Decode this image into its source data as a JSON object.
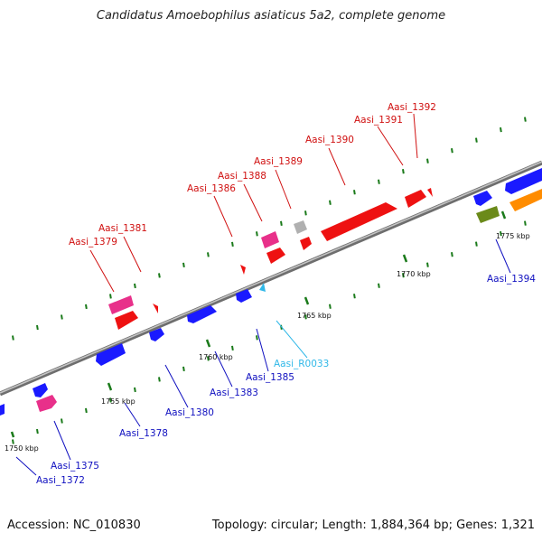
{
  "title": "Candidatus Amoebophilus asiaticus 5a2, complete genome",
  "footer": {
    "accession": "Accession: NC_010830",
    "summary": "Topology: circular; Length: 1,884,364 bp; Genes: 1,321"
  },
  "colors": {
    "backbone": "#8a8a8a",
    "tick": "#1a7a1a",
    "forward_label": "#d01010",
    "reverse_label": "#1010c0",
    "rna_label": "#30b8e8"
  },
  "ticks": [
    {
      "label": "1750 kbp"
    },
    {
      "label": "1755 kbp"
    },
    {
      "label": "1760 kbp"
    },
    {
      "label": "1765 kbp"
    },
    {
      "label": "1770 kbp"
    },
    {
      "label": "1775 kbp"
    }
  ],
  "genes": [
    {
      "id": "Aasi_1372",
      "strand": "reverse",
      "color": "#1a1aff"
    },
    {
      "id": "Aasi_1375",
      "strand": "reverse",
      "color": "#1a1aff"
    },
    {
      "id": "Aasi_1378",
      "strand": "reverse",
      "color": "#1a1aff"
    },
    {
      "id": "Aasi_1380",
      "strand": "reverse",
      "color": "#1a1aff"
    },
    {
      "id": "Aasi_1383",
      "strand": "reverse",
      "color": "#1a1aff"
    },
    {
      "id": "Aasi_1385",
      "strand": "reverse",
      "color": "#1a1aff"
    },
    {
      "id": "Aasi_R0033",
      "strand": "reverse",
      "color": "#30b8e8"
    },
    {
      "id": "Aasi_1394",
      "strand": "reverse",
      "color": "#1a1aff"
    },
    {
      "id": "Aasi_1379",
      "strand": "forward",
      "color": "#e8308a"
    },
    {
      "id": "Aasi_1381",
      "strand": "forward",
      "color": "#ee1111"
    },
    {
      "id": "Aasi_1386",
      "strand": "forward",
      "color": "#ee1111"
    },
    {
      "id": "Aasi_1388",
      "strand": "forward",
      "color": "#e8308a"
    },
    {
      "id": "Aasi_1389",
      "strand": "forward",
      "color": "#b0b0b0"
    },
    {
      "id": "Aasi_1390",
      "strand": "forward",
      "color": "#ee1111"
    },
    {
      "id": "Aasi_1391",
      "strand": "forward",
      "color": "#ee1111"
    },
    {
      "id": "Aasi_1392",
      "strand": "forward",
      "color": "#ee1111"
    }
  ]
}
